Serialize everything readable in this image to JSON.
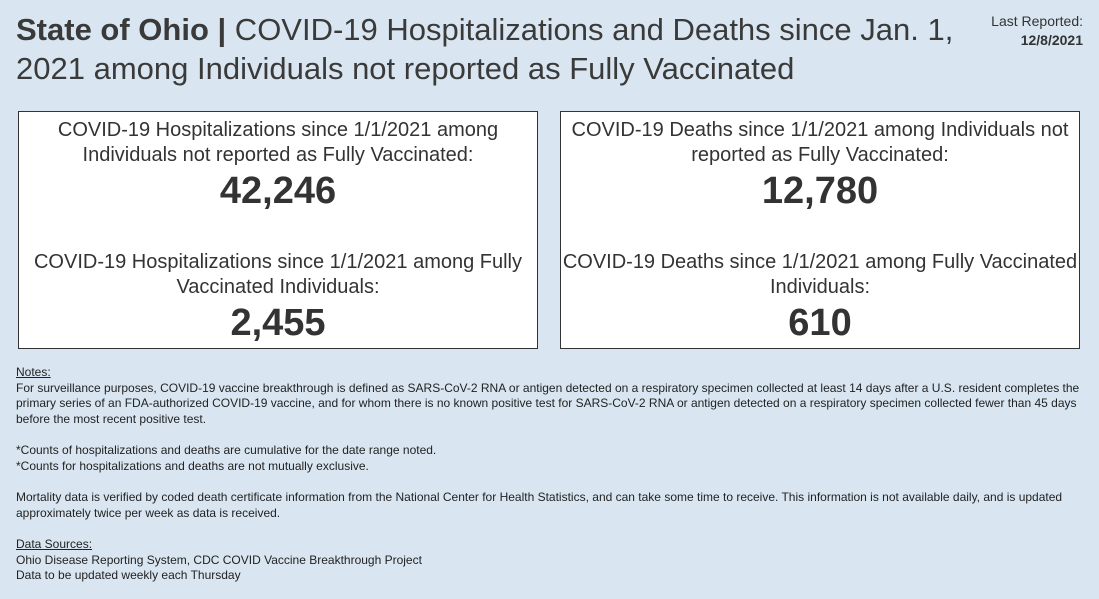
{
  "header": {
    "title_bold": "State of Ohio |",
    "title_rest": " COVID-19 Hospitalizations and Deaths since Jan. 1, 2021 among Individuals not reported as Fully Vaccinated",
    "last_reported_label": "Last Reported:",
    "last_reported_date": "12/8/2021"
  },
  "hospitalizations": {
    "unvax_label": "COVID-19 Hospitalizations since 1/1/2021 among Individuals not reported as Fully Vaccinated:",
    "unvax_value": "42,246",
    "vax_label": "COVID-19 Hospitalizations since 1/1/2021 among Fully Vaccinated Individuals:",
    "vax_value": "2,455"
  },
  "deaths": {
    "unvax_label": "COVID-19 Deaths since 1/1/2021 among Individuals not reported as Fully Vaccinated:",
    "unvax_value": "12,780",
    "vax_label": "COVID-19 Deaths since 1/1/2021 among Fully Vaccinated Individuals:",
    "vax_value": "610"
  },
  "notes": {
    "heading": "Notes:",
    "definition": "For surveillance purposes, COVID-19 vaccine breakthrough is defined as SARS-CoV-2 RNA or antigen detected on a respiratory specimen collected at least 14 days after a U.S. resident completes the primary series of an FDA-authorized COVID-19 vaccine, and for whom there is no known positive test for SARS-CoV-2 RNA or antigen detected on a respiratory specimen collected fewer than 45 days before the most recent positive test.",
    "cumulative": "*Counts of hospitalizations and deaths are cumulative for the date range noted.",
    "exclusive": "*Counts for hospitalizations and deaths are not mutually exclusive.",
    "mortality": "Mortality data is verified by coded death certificate information from the National Center for Health Statistics, and can take some time to receive. This information is not available daily, and is updated approximately twice per week as data is received."
  },
  "sources": {
    "heading": "Data Sources:",
    "systems": "Ohio Disease Reporting System, CDC COVID Vaccine Breakthrough Project",
    "update": "Data to be updated weekly each Thursday"
  }
}
